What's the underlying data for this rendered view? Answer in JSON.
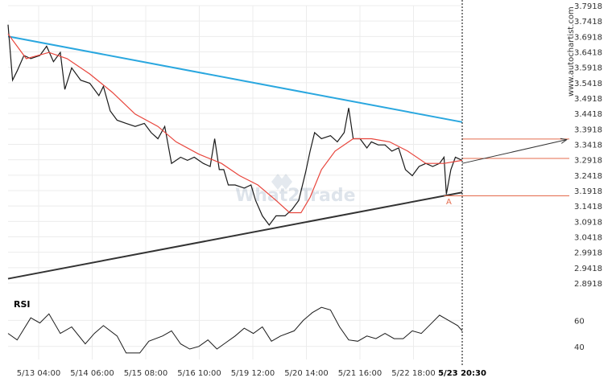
{
  "chart_data": {
    "type": "line",
    "price_axis": {
      "ticks": [
        "3.7918",
        "3.7418",
        "3.6918",
        "3.6418",
        "3.5918",
        "3.5418",
        "3.4918",
        "3.4418",
        "3.3918",
        "3.3418",
        "3.2918",
        "3.2418",
        "3.1918",
        "3.1418",
        "3.0918",
        "3.0418",
        "2.9918",
        "2.9418",
        "2.8918"
      ],
      "range": [
        2.8918,
        3.7918
      ]
    },
    "rsi_axis": {
      "ticks": [
        "60",
        "40"
      ],
      "range": [
        30,
        80
      ]
    },
    "time_axis": {
      "labels": [
        "5/13 04:00",
        "5/14 06:00",
        "5/15 08:00",
        "5/16 10:00",
        "5/19 12:00",
        "5/20 14:00",
        "5/21 16:00",
        "5/22 18:00",
        "5/23 20:30"
      ],
      "current": "5/23 20:30"
    },
    "rsi_title": "RSI",
    "watermark": "What2Trade",
    "credit": "www.autochartist.com",
    "point_marker": "A",
    "pattern_lines": {
      "upper": {
        "from": [
          0,
          3.692
        ],
        "to": [
          1,
          3.414
        ]
      },
      "lower": {
        "from": [
          0,
          2.906
        ],
        "to": [
          1,
          3.186
        ]
      }
    },
    "levels": {
      "upper_target": 3.359,
      "current": 3.296,
      "lower": 3.175
    },
    "forecast_arrow": {
      "from": [
        1,
        3.28
      ],
      "to": [
        1.23,
        3.357
      ]
    },
    "price_series": [
      [
        0,
        3.73
      ],
      [
        0.01,
        3.55
      ],
      [
        0.02,
        3.58
      ],
      [
        0.035,
        3.63
      ],
      [
        0.05,
        3.62
      ],
      [
        0.07,
        3.63
      ],
      [
        0.085,
        3.66
      ],
      [
        0.1,
        3.61
      ],
      [
        0.115,
        3.64
      ],
      [
        0.125,
        3.52
      ],
      [
        0.14,
        3.59
      ],
      [
        0.16,
        3.55
      ],
      [
        0.18,
        3.54
      ],
      [
        0.2,
        3.5
      ],
      [
        0.21,
        3.53
      ],
      [
        0.225,
        3.45
      ],
      [
        0.24,
        3.42
      ],
      [
        0.26,
        3.41
      ],
      [
        0.28,
        3.4
      ],
      [
        0.3,
        3.41
      ],
      [
        0.315,
        3.38
      ],
      [
        0.33,
        3.36
      ],
      [
        0.345,
        3.4
      ],
      [
        0.36,
        3.28
      ],
      [
        0.38,
        3.3
      ],
      [
        0.395,
        3.29
      ],
      [
        0.41,
        3.3
      ],
      [
        0.43,
        3.28
      ],
      [
        0.445,
        3.27
      ],
      [
        0.455,
        3.36
      ],
      [
        0.465,
        3.26
      ],
      [
        0.475,
        3.26
      ],
      [
        0.485,
        3.21
      ],
      [
        0.5,
        3.21
      ],
      [
        0.52,
        3.2
      ],
      [
        0.535,
        3.21
      ],
      [
        0.545,
        3.16
      ],
      [
        0.56,
        3.11
      ],
      [
        0.575,
        3.08
      ],
      [
        0.59,
        3.11
      ],
      [
        0.61,
        3.11
      ],
      [
        0.625,
        3.13
      ],
      [
        0.64,
        3.16
      ],
      [
        0.655,
        3.25
      ],
      [
        0.665,
        3.32
      ],
      [
        0.675,
        3.38
      ],
      [
        0.69,
        3.36
      ],
      [
        0.71,
        3.37
      ],
      [
        0.725,
        3.35
      ],
      [
        0.74,
        3.38
      ],
      [
        0.75,
        3.46
      ],
      [
        0.76,
        3.36
      ],
      [
        0.775,
        3.36
      ],
      [
        0.79,
        3.33
      ],
      [
        0.8,
        3.35
      ],
      [
        0.815,
        3.34
      ],
      [
        0.83,
        3.34
      ],
      [
        0.845,
        3.32
      ],
      [
        0.86,
        3.33
      ],
      [
        0.875,
        3.26
      ],
      [
        0.89,
        3.24
      ],
      [
        0.905,
        3.27
      ],
      [
        0.92,
        3.28
      ],
      [
        0.935,
        3.27
      ],
      [
        0.95,
        3.28
      ],
      [
        0.96,
        3.3
      ],
      [
        0.965,
        3.18
      ],
      [
        0.975,
        3.26
      ],
      [
        0.985,
        3.3
      ],
      [
        1,
        3.29
      ]
    ],
    "ma_series": [
      [
        0,
        3.7
      ],
      [
        0.04,
        3.62
      ],
      [
        0.09,
        3.64
      ],
      [
        0.13,
        3.62
      ],
      [
        0.18,
        3.57
      ],
      [
        0.23,
        3.51
      ],
      [
        0.28,
        3.44
      ],
      [
        0.33,
        3.4
      ],
      [
        0.37,
        3.35
      ],
      [
        0.42,
        3.31
      ],
      [
        0.47,
        3.28
      ],
      [
        0.51,
        3.24
      ],
      [
        0.55,
        3.21
      ],
      [
        0.59,
        3.16
      ],
      [
        0.62,
        3.12
      ],
      [
        0.645,
        3.12
      ],
      [
        0.665,
        3.17
      ],
      [
        0.69,
        3.26
      ],
      [
        0.72,
        3.32
      ],
      [
        0.76,
        3.36
      ],
      [
        0.8,
        3.36
      ],
      [
        0.84,
        3.35
      ],
      [
        0.88,
        3.32
      ],
      [
        0.92,
        3.28
      ],
      [
        0.96,
        3.28
      ],
      [
        1,
        3.29
      ]
    ],
    "rsi_series": [
      [
        0,
        50
      ],
      [
        0.02,
        45
      ],
      [
        0.05,
        62
      ],
      [
        0.07,
        58
      ],
      [
        0.09,
        65
      ],
      [
        0.115,
        50
      ],
      [
        0.14,
        55
      ],
      [
        0.17,
        42
      ],
      [
        0.19,
        50
      ],
      [
        0.21,
        56
      ],
      [
        0.24,
        48
      ],
      [
        0.26,
        35
      ],
      [
        0.29,
        35
      ],
      [
        0.31,
        44
      ],
      [
        0.34,
        48
      ],
      [
        0.36,
        52
      ],
      [
        0.38,
        42
      ],
      [
        0.4,
        38
      ],
      [
        0.42,
        40
      ],
      [
        0.44,
        45
      ],
      [
        0.46,
        38
      ],
      [
        0.48,
        43
      ],
      [
        0.5,
        48
      ],
      [
        0.52,
        54
      ],
      [
        0.54,
        50
      ],
      [
        0.56,
        55
      ],
      [
        0.58,
        44
      ],
      [
        0.6,
        48
      ],
      [
        0.63,
        52
      ],
      [
        0.65,
        60
      ],
      [
        0.67,
        66
      ],
      [
        0.69,
        70
      ],
      [
        0.71,
        68
      ],
      [
        0.73,
        55
      ],
      [
        0.75,
        45
      ],
      [
        0.77,
        44
      ],
      [
        0.79,
        48
      ],
      [
        0.81,
        46
      ],
      [
        0.83,
        50
      ],
      [
        0.85,
        46
      ],
      [
        0.87,
        46
      ],
      [
        0.89,
        52
      ],
      [
        0.91,
        50
      ],
      [
        0.93,
        57
      ],
      [
        0.95,
        64
      ],
      [
        0.97,
        60
      ],
      [
        0.99,
        56
      ],
      [
        1,
        52
      ]
    ]
  }
}
